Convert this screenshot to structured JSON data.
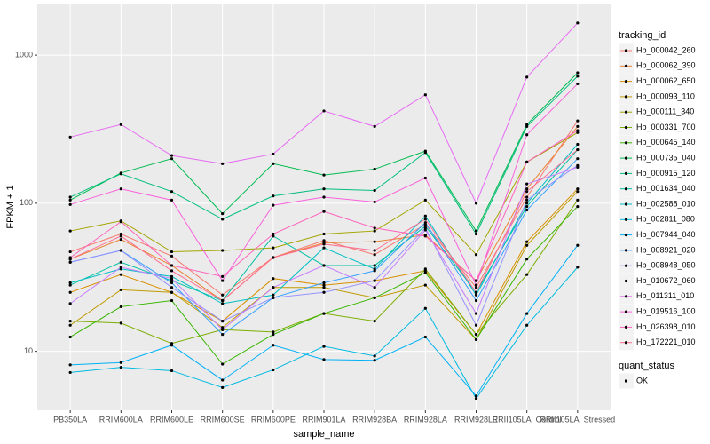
{
  "chart_data": {
    "type": "line",
    "x_label": "sample_name",
    "y_label": "FPKM + 1",
    "log_y": true,
    "grid": true,
    "point_color": "#000000",
    "categories": [
      "PB350LA",
      "RRIM600LA",
      "RRIM600LE",
      "RRIM600SE",
      "RRIM600PE",
      "RRIM901LA",
      "RRIM928BA",
      "RRIM928LA",
      "RRIM928LE",
      "RRII105LA_Control",
      "RRII105LA_Stressed"
    ],
    "ylim": [
      4,
      2200
    ],
    "yticks": [
      10,
      100,
      1000
    ],
    "legend_title": "tracking_id",
    "legend2_title": "quant_status",
    "legend2_entries": [
      "OK"
    ],
    "series": [
      {
        "name": "Hb_000042_260",
        "color": "#F8766D",
        "values": [
          47,
          62,
          44,
          24,
          43,
          56,
          45,
          72,
          27,
          110,
          360
        ]
      },
      {
        "name": "Hb_000062_390",
        "color": "#EA8331",
        "values": [
          42,
          57,
          38,
          22,
          43,
          54,
          55,
          61,
          30,
          125,
          330
        ]
      },
      {
        "name": "Hb_000062_650",
        "color": "#D89000",
        "values": [
          25,
          33,
          25,
          16,
          31,
          28,
          30,
          35,
          13,
          55,
          125
        ]
      },
      {
        "name": "Hb_000093_110",
        "color": "#C09B00",
        "values": [
          15,
          26,
          25,
          14.5,
          27,
          27,
          23,
          28,
          12,
          52,
          120
        ]
      },
      {
        "name": "Hb_000111_340",
        "color": "#A3A500",
        "values": [
          65,
          76,
          47,
          48,
          50,
          62,
          65,
          105,
          45,
          190,
          300
        ]
      },
      {
        "name": "Hb_000331_700",
        "color": "#7CAE00",
        "values": [
          16,
          15.5,
          11.3,
          14,
          13.5,
          18,
          16,
          36,
          13,
          33,
          105
        ]
      },
      {
        "name": "Hb_000645_140",
        "color": "#39B600",
        "values": [
          12.5,
          20,
          22,
          8.2,
          13,
          18,
          23,
          34,
          12,
          42,
          95
        ]
      },
      {
        "name": "Hb_000735_040",
        "color": "#00BB4E",
        "values": [
          105,
          160,
          200,
          85,
          185,
          155,
          170,
          225,
          65,
          340,
          760
        ]
      },
      {
        "name": "Hb_000915_120",
        "color": "#00BF7D",
        "values": [
          110,
          158,
          120,
          78,
          112,
          125,
          122,
          220,
          62,
          330,
          720
        ]
      },
      {
        "name": "Hb_001634_040",
        "color": "#00C1A3",
        "values": [
          28,
          40,
          30,
          22,
          60,
          38,
          38,
          70,
          25,
          95,
          230
        ]
      },
      {
        "name": "Hb_002588_010",
        "color": "#00BFC4",
        "values": [
          29,
          36,
          32,
          21,
          24,
          50,
          36,
          82,
          24,
          100,
          250
        ]
      },
      {
        "name": "Hb_002811_080",
        "color": "#00BAE0",
        "values": [
          7.2,
          7.8,
          7.4,
          5.7,
          7.5,
          10.8,
          9.3,
          19.5,
          4.8,
          15,
          37
        ]
      },
      {
        "name": "Hb_007944_040",
        "color": "#00B0F6",
        "values": [
          8.1,
          8.4,
          11,
          6.4,
          11,
          8.8,
          8.7,
          12.5,
          5,
          18,
          52
        ]
      },
      {
        "name": "Hb_008921_020",
        "color": "#35A2FF",
        "values": [
          40,
          48,
          29,
          13,
          23,
          29,
          35,
          74,
          22,
          90,
          200
        ]
      },
      {
        "name": "Hb_008948_050",
        "color": "#9590FF",
        "values": [
          40,
          48,
          27,
          16,
          23,
          25,
          30,
          68,
          15,
          105,
          180
        ]
      },
      {
        "name": "Hb_010672_060",
        "color": "#C77CFF",
        "values": [
          21,
          37,
          31,
          14,
          27,
          38,
          27,
          66,
          18,
          135,
          175
        ]
      },
      {
        "name": "Hb_011311_010",
        "color": "#E76BF3",
        "values": [
          280,
          340,
          210,
          185,
          215,
          420,
          330,
          540,
          100,
          710,
          1650
        ]
      },
      {
        "name": "Hb_019516_100",
        "color": "#FA62DB",
        "values": [
          98,
          125,
          105,
          30,
          97,
          110,
          102,
          148,
          28,
          290,
          640
        ]
      },
      {
        "name": "Hb_026398_010",
        "color": "#FF62BC",
        "values": [
          43,
          75,
          38,
          32,
          62,
          88,
          68,
          60,
          30,
          190,
          310
        ]
      },
      {
        "name": "Hb_172221_010",
        "color": "#FF6C91",
        "values": [
          42,
          60,
          35,
          22,
          43,
          53,
          48,
          78,
          25,
          120,
          230
        ]
      }
    ]
  }
}
